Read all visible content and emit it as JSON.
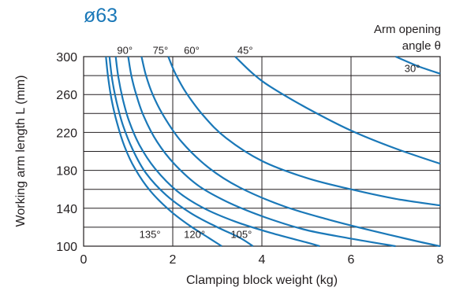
{
  "colors": {
    "curve": "#1a78b8",
    "title": "#1a78b8",
    "axis": "#231f20"
  },
  "chart_data": {
    "type": "line",
    "title": "ø63",
    "xlabel": "Clamping block weight (kg)",
    "ylabel": "Working arm length L (mm)",
    "xlim": [
      0,
      8
    ],
    "ylim": [
      100,
      300
    ],
    "x_ticks": [
      "0",
      "2",
      "4",
      "6",
      "8"
    ],
    "y_ticks": [
      "100",
      "140",
      "180",
      "220",
      "260",
      "300"
    ],
    "legend_title_line1": "Arm opening",
    "legend_title_line2": "angle θ",
    "grid": true,
    "series": [
      {
        "name": "30°",
        "points": [
          [
            7.0,
            300
          ],
          [
            7.5,
            290
          ],
          [
            8.0,
            282
          ]
        ]
      },
      {
        "name": "45°",
        "points": [
          [
            3.4,
            300
          ],
          [
            3.8,
            282
          ],
          [
            4.2,
            268
          ],
          [
            5.0,
            246
          ],
          [
            6.0,
            222
          ],
          [
            7.0,
            203
          ],
          [
            8.0,
            187
          ]
        ]
      },
      {
        "name": "60°",
        "points": [
          [
            1.9,
            300
          ],
          [
            2.05,
            283
          ],
          [
            2.3,
            262
          ],
          [
            2.7,
            237
          ],
          [
            3.2,
            214
          ],
          [
            4.0,
            190
          ],
          [
            5.0,
            172
          ],
          [
            6.0,
            160
          ],
          [
            7.0,
            150
          ],
          [
            8.0,
            143
          ]
        ]
      },
      {
        "name": "75°",
        "points": [
          [
            1.3,
            300
          ],
          [
            1.4,
            280
          ],
          [
            1.55,
            260
          ],
          [
            1.8,
            237
          ],
          [
            2.2,
            210
          ],
          [
            2.8,
            183
          ],
          [
            3.5,
            162
          ],
          [
            4.5,
            142
          ],
          [
            5.5,
            128
          ],
          [
            6.5,
            116
          ],
          [
            7.5,
            105
          ],
          [
            8.0,
            100
          ]
        ]
      },
      {
        "name": "90°",
        "points": [
          [
            1.0,
            300
          ],
          [
            1.07,
            280
          ],
          [
            1.18,
            260
          ],
          [
            1.35,
            237
          ],
          [
            1.65,
            210
          ],
          [
            2.05,
            186
          ],
          [
            2.6,
            163
          ],
          [
            3.3,
            145
          ],
          [
            4.1,
            130
          ],
          [
            5.0,
            117
          ],
          [
            6.0,
            108
          ],
          [
            7.0,
            100
          ]
        ]
      },
      {
        "name": "105°",
        "points": [
          [
            0.72,
            300
          ],
          [
            0.78,
            278
          ],
          [
            0.88,
            255
          ],
          [
            1.02,
            232
          ],
          [
            1.25,
            207
          ],
          [
            1.6,
            182
          ],
          [
            2.1,
            158
          ],
          [
            2.7,
            140
          ],
          [
            3.4,
            126
          ],
          [
            4.2,
            114
          ],
          [
            5.0,
            104
          ],
          [
            5.3,
            100
          ]
        ]
      },
      {
        "name": "120°",
        "points": [
          [
            0.58,
            300
          ],
          [
            0.64,
            276
          ],
          [
            0.74,
            252
          ],
          [
            0.88,
            228
          ],
          [
            1.1,
            202
          ],
          [
            1.4,
            177
          ],
          [
            1.85,
            154
          ],
          [
            2.4,
            135
          ],
          [
            3.0,
            120
          ],
          [
            3.5,
            109
          ],
          [
            3.8,
            100
          ]
        ]
      },
      {
        "name": "135°",
        "points": [
          [
            0.5,
            300
          ],
          [
            0.55,
            278
          ],
          [
            0.63,
            254
          ],
          [
            0.75,
            230
          ],
          [
            0.92,
            205
          ],
          [
            1.15,
            182
          ],
          [
            1.5,
            158
          ],
          [
            1.95,
            137
          ],
          [
            2.4,
            121
          ],
          [
            2.8,
            109
          ],
          [
            3.1,
            100
          ]
        ]
      }
    ],
    "annotations": [
      {
        "text": "90°",
        "x": 0.75,
        "y": 307
      },
      {
        "text": "75°",
        "x": 1.55,
        "y": 307
      },
      {
        "text": "60°",
        "x": 2.25,
        "y": 307
      },
      {
        "text": "45°",
        "x": 3.45,
        "y": 307
      },
      {
        "text": "30°",
        "x": 7.2,
        "y": 288
      },
      {
        "text": "135°",
        "x": 1.25,
        "y": 113
      },
      {
        "text": "120°",
        "x": 2.25,
        "y": 113
      },
      {
        "text": "105°",
        "x": 3.3,
        "y": 113
      }
    ]
  }
}
